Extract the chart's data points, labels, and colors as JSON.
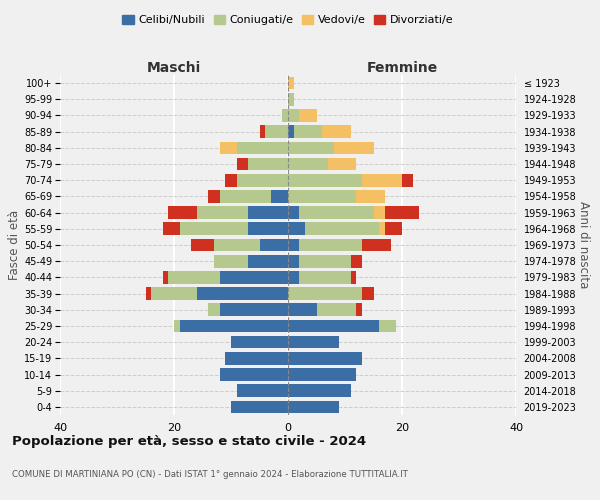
{
  "age_groups": [
    "0-4",
    "5-9",
    "10-14",
    "15-19",
    "20-24",
    "25-29",
    "30-34",
    "35-39",
    "40-44",
    "45-49",
    "50-54",
    "55-59",
    "60-64",
    "65-69",
    "70-74",
    "75-79",
    "80-84",
    "85-89",
    "90-94",
    "95-99",
    "100+"
  ],
  "birth_years": [
    "2019-2023",
    "2014-2018",
    "2009-2013",
    "2004-2008",
    "1999-2003",
    "1994-1998",
    "1989-1993",
    "1984-1988",
    "1979-1983",
    "1974-1978",
    "1969-1973",
    "1964-1968",
    "1959-1963",
    "1954-1958",
    "1949-1953",
    "1944-1948",
    "1939-1943",
    "1934-1938",
    "1929-1933",
    "1924-1928",
    "≤ 1923"
  ],
  "male": {
    "celibi": [
      10,
      9,
      12,
      11,
      10,
      19,
      12,
      16,
      12,
      7,
      5,
      7,
      7,
      3,
      0,
      0,
      0,
      0,
      0,
      0,
      0
    ],
    "coniugati": [
      0,
      0,
      0,
      0,
      0,
      1,
      2,
      8,
      9,
      6,
      8,
      12,
      9,
      9,
      9,
      7,
      9,
      4,
      1,
      0,
      0
    ],
    "vedovi": [
      0,
      0,
      0,
      0,
      0,
      0,
      0,
      0,
      0,
      0,
      0,
      0,
      0,
      0,
      0,
      0,
      3,
      0,
      0,
      0,
      0
    ],
    "divorziati": [
      0,
      0,
      0,
      0,
      0,
      0,
      0,
      1,
      1,
      0,
      4,
      3,
      5,
      2,
      2,
      2,
      0,
      1,
      0,
      0,
      0
    ]
  },
  "female": {
    "nubili": [
      9,
      11,
      12,
      13,
      9,
      16,
      5,
      0,
      2,
      2,
      2,
      3,
      2,
      0,
      0,
      0,
      0,
      1,
      0,
      0,
      0
    ],
    "coniugate": [
      0,
      0,
      0,
      0,
      0,
      3,
      7,
      13,
      9,
      9,
      11,
      13,
      13,
      12,
      13,
      7,
      8,
      5,
      2,
      1,
      0
    ],
    "vedove": [
      0,
      0,
      0,
      0,
      0,
      0,
      0,
      0,
      0,
      0,
      0,
      1,
      2,
      5,
      7,
      5,
      7,
      5,
      3,
      0,
      1
    ],
    "divorziate": [
      0,
      0,
      0,
      0,
      0,
      0,
      1,
      2,
      1,
      2,
      5,
      3,
      6,
      0,
      2,
      0,
      0,
      0,
      0,
      0,
      0
    ]
  },
  "colors": {
    "celibi_nubili": "#3b6ea5",
    "coniugati": "#b5c98e",
    "vedovi": "#f5c064",
    "divorziati": "#d03020"
  },
  "xlim": 40,
  "title": "Popolazione per età, sesso e stato civile - 2024",
  "subtitle": "COMUNE DI MARTINIANA PO (CN) - Dati ISTAT 1° gennaio 2024 - Elaborazione TUTTITALIA.IT",
  "ylabel_left": "Fasce di età",
  "ylabel_right": "Anni di nascita",
  "xlabel_left": "Maschi",
  "xlabel_right": "Femmine",
  "bg_color": "#f0f0f0"
}
